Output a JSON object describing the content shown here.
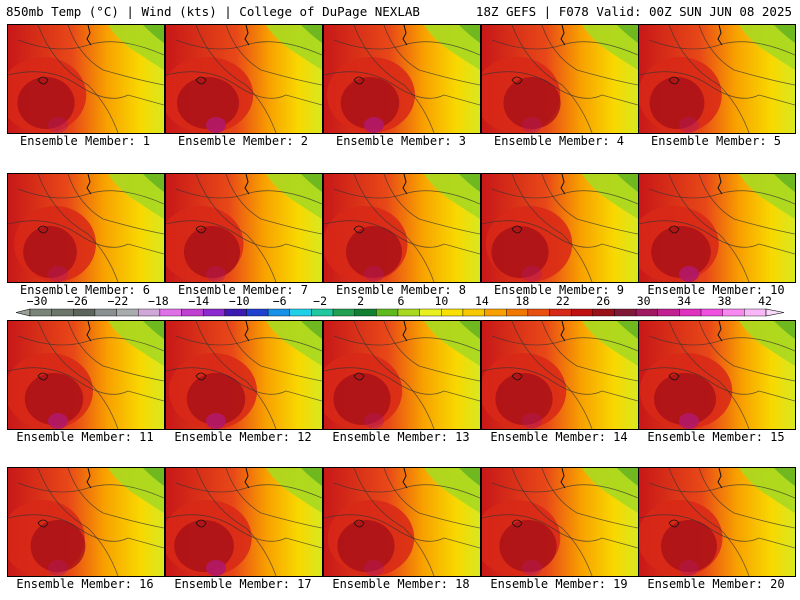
{
  "header": {
    "left": "850mb Temp (°C) | Wind (kts) | College of DuPage NEXLAB",
    "right": "18Z GEFS | F078 Valid: 00Z SUN JUN 08 2025"
  },
  "panels": [
    {
      "label": "Ensemble Member: 1"
    },
    {
      "label": "Ensemble Member: 2"
    },
    {
      "label": "Ensemble Member: 3"
    },
    {
      "label": "Ensemble Member: 4"
    },
    {
      "label": "Ensemble Member: 5"
    },
    {
      "label": "Ensemble Member: 6"
    },
    {
      "label": "Ensemble Member: 7"
    },
    {
      "label": "Ensemble Member: 8"
    },
    {
      "label": "Ensemble Member: 9"
    },
    {
      "label": "Ensemble Member: 10"
    },
    {
      "label": "Ensemble Member: 11"
    },
    {
      "label": "Ensemble Member: 12"
    },
    {
      "label": "Ensemble Member: 13"
    },
    {
      "label": "Ensemble Member: 14"
    },
    {
      "label": "Ensemble Member: 15"
    },
    {
      "label": "Ensemble Member: 16"
    },
    {
      "label": "Ensemble Member: 17"
    },
    {
      "label": "Ensemble Member: 18"
    },
    {
      "label": "Ensemble Member: 19"
    },
    {
      "label": "Ensemble Member: 20"
    }
  ],
  "colorbar": {
    "ticks": [
      "-30",
      "-26",
      "-22",
      "-18",
      "-14",
      "-10",
      "-6",
      "-2",
      "2",
      "6",
      "10",
      "14",
      "18",
      "22",
      "26",
      "30",
      "34",
      "38",
      "42"
    ],
    "colors": [
      "#7a8478",
      "#6d756b",
      "#5c645b",
      "#8a9090",
      "#a8acac",
      "#d0a8d8",
      "#e070e8",
      "#c040d0",
      "#8a2ad0",
      "#3a1ab0",
      "#2040d0",
      "#1890e8",
      "#20d0e8",
      "#20c8a0",
      "#20a050",
      "#108030",
      "#60b820",
      "#a8d820",
      "#e8f020",
      "#f8e000",
      "#f8c800",
      "#f8a000",
      "#f07800",
      "#e85010",
      "#d82818",
      "#c01010",
      "#981018",
      "#801838",
      "#a01860",
      "#c02090",
      "#e030c0",
      "#f050e0",
      "#f888f0",
      "#f8b8f8"
    ]
  }
}
